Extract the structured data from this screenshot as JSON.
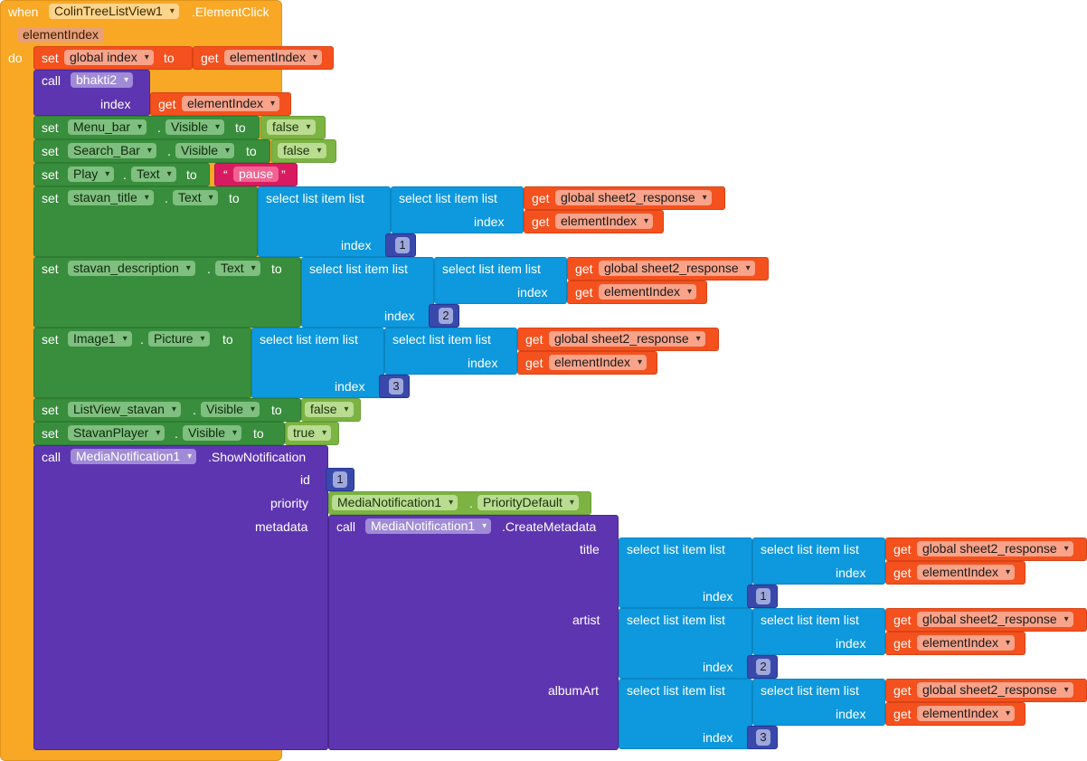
{
  "colors": {
    "event": "#f9a825",
    "variable": "#f4511e",
    "procedure": "#5e35b1",
    "component": "#388e3c",
    "list": "#0e98dd",
    "number": "#3949ab",
    "text": "#d81b60",
    "constant": "#7cb342"
  },
  "event": {
    "when": "when",
    "component": "ColinTreeListView1",
    "event": ".ElementClick",
    "param": "elementIndex",
    "do": "do"
  },
  "kw": {
    "set": "set",
    "to": "to",
    "get": "get",
    "call": "call",
    "dot": ".",
    "select": "select list item  list",
    "index": "index",
    "quote_open": "“",
    "quote_close": "”"
  },
  "r1": {
    "var": "global index",
    "getvar": "elementIndex"
  },
  "r2": {
    "proc": "bhakti2",
    "arg": "index",
    "getvar": "elementIndex"
  },
  "r3": {
    "comp": "Menu_bar",
    "prop": "Visible",
    "val": "false"
  },
  "r4": {
    "comp": "Search_Bar",
    "prop": "Visible",
    "val": "false"
  },
  "r5": {
    "comp": "Play",
    "prop": "Text",
    "val": "pause"
  },
  "r6": {
    "comp": "stavan_title",
    "prop": "Text",
    "getlist": "global sheet2_response",
    "getidx": "elementIndex",
    "idx": "1"
  },
  "r7": {
    "comp": "stavan_description",
    "prop": "Text",
    "getlist": "global sheet2_response",
    "getidx": "elementIndex",
    "idx": "2"
  },
  "r8": {
    "comp": "Image1",
    "prop": "Picture",
    "getlist": "global sheet2_response",
    "getidx": "elementIndex",
    "idx": "3"
  },
  "r9": {
    "comp": "ListView_stavan",
    "prop": "Visible",
    "val": "false"
  },
  "r10": {
    "comp": "StavanPlayer",
    "prop": "Visible",
    "val": "true"
  },
  "notify": {
    "comp": "MediaNotification1",
    "method": ".ShowNotification",
    "id_label": "id",
    "id_val": "1",
    "prio_label": "priority",
    "prio_comp": "MediaNotification1",
    "prio_val": "PriorityDefault",
    "meta_label": "metadata",
    "meta_comp": "MediaNotification1",
    "meta_method": ".CreateMetadata"
  },
  "meta": [
    {
      "label": "title",
      "getlist": "global sheet2_response",
      "getidx": "elementIndex",
      "idx": "1"
    },
    {
      "label": "artist",
      "getlist": "global sheet2_response",
      "getidx": "elementIndex",
      "idx": "2"
    },
    {
      "label": "albumArt",
      "getlist": "global sheet2_response",
      "getidx": "elementIndex",
      "idx": "3"
    }
  ]
}
